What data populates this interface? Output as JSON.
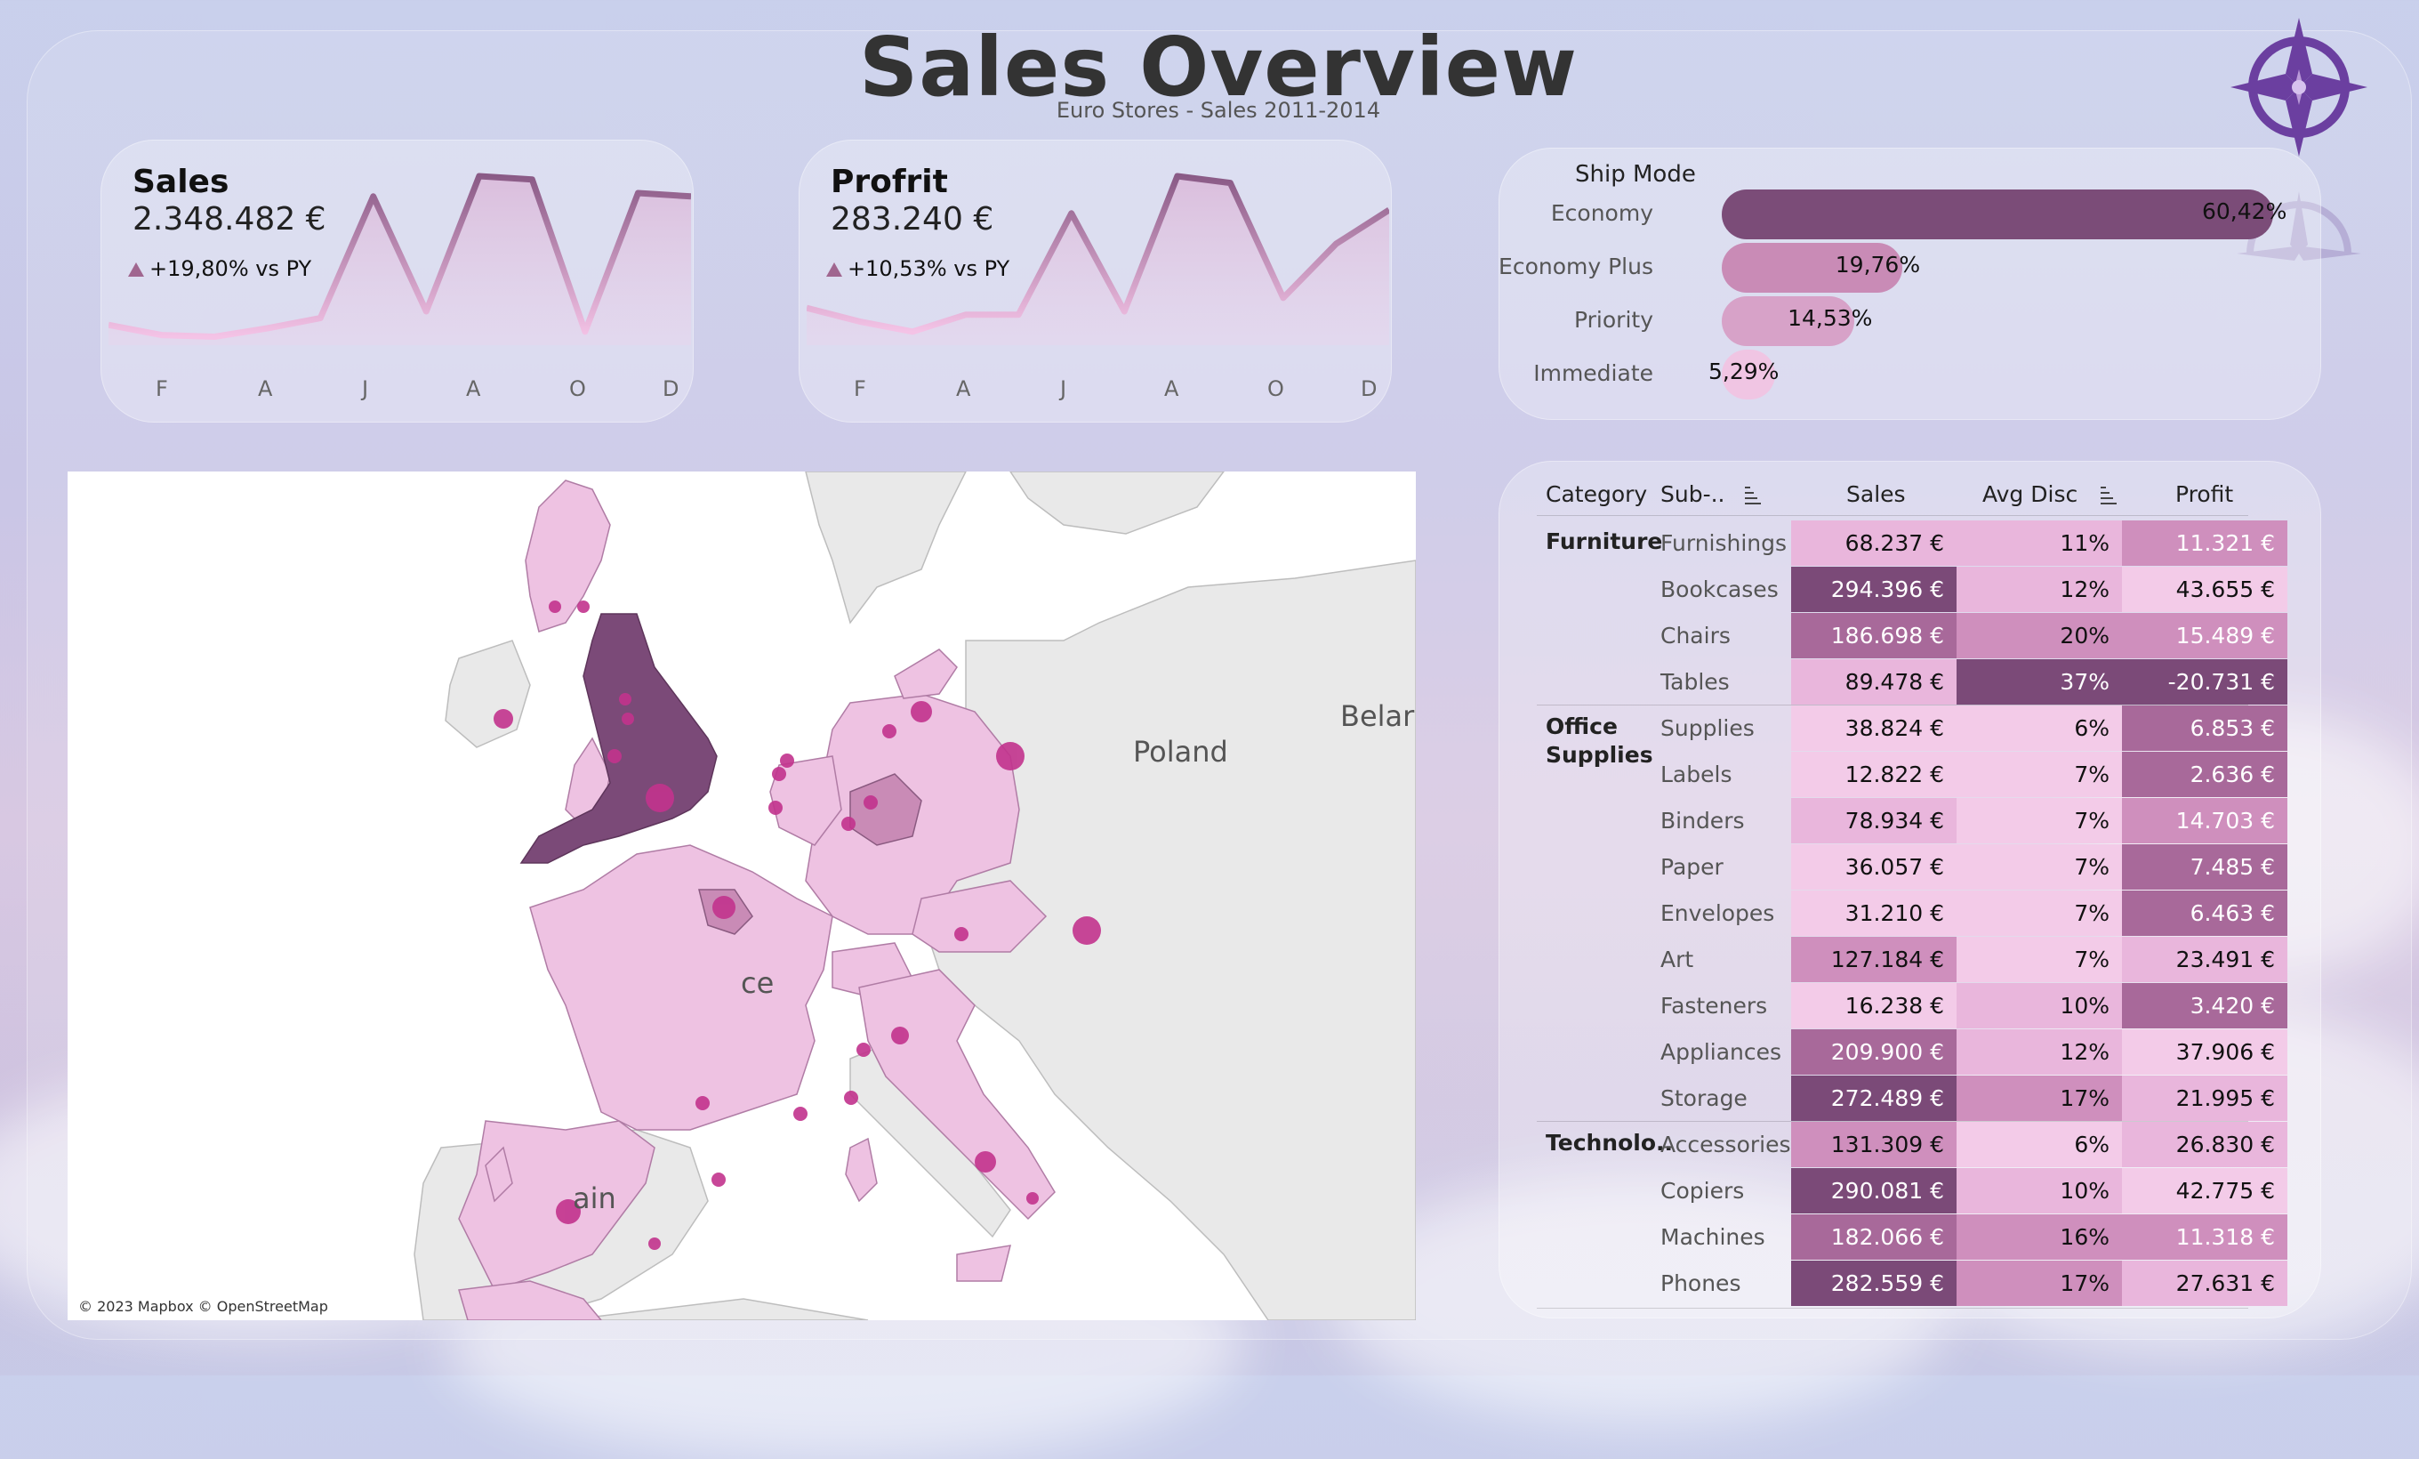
{
  "title": "Sales Overview",
  "subtitle": "Euro Stores - Sales 2011-2014",
  "logo_icon": "compass-star-icon",
  "kpis": {
    "sales": {
      "label": "Sales",
      "value": "2.348.482 €",
      "delta": "+19,80% vs PY",
      "months": [
        "F",
        "A",
        "J",
        "A",
        "O",
        "D"
      ],
      "trend": [
        12,
        6,
        5,
        10,
        16,
        88,
        20,
        100,
        98,
        8,
        90,
        88
      ]
    },
    "profit": {
      "label": "Profrit",
      "value": "283.240 €",
      "delta": "+10,53% vs PY",
      "months": [
        "F",
        "A",
        "J",
        "A",
        "O",
        "D"
      ],
      "trend": [
        22,
        14,
        8,
        18,
        18,
        78,
        20,
        100,
        96,
        28,
        60,
        80
      ]
    }
  },
  "ship_mode": {
    "title": "Ship Mode",
    "rows": [
      {
        "label": "Economy",
        "value": "60,42%",
        "pct": 60.42,
        "color": "#7b4c78"
      },
      {
        "label": "Economy Plus",
        "value": "19,76%",
        "pct": 19.76,
        "color": "#c98bb6"
      },
      {
        "label": "Priority",
        "value": "14,53%",
        "pct": 14.53,
        "color": "#d7a2c8"
      },
      {
        "label": "Immediate",
        "value": "5,29%",
        "pct": 5.29,
        "color": "#f0c5e3"
      }
    ]
  },
  "map": {
    "credit": "© 2023 Mapbox © OpenStreetMap",
    "labels": {
      "poland": "Poland",
      "belarus": "Belaru",
      "france": "ce",
      "spain": "ain"
    }
  },
  "table": {
    "headers": {
      "category": "Category",
      "sub": "Sub-..",
      "sales": "Sales",
      "avg_disc": "Avg Disc",
      "profit": "Profit"
    },
    "groups": [
      {
        "category": "Furniture",
        "rows": [
          {
            "sub": "Furnishings",
            "sales": "68.237 €",
            "disc": "11%",
            "profit": "11.321 €",
            "sc": 2,
            "dc": 2,
            "pc": 3
          },
          {
            "sub": "Bookcases",
            "sales": "294.396 €",
            "disc": "12%",
            "profit": "43.655 €",
            "sc": 5,
            "dc": 2,
            "pc": 1
          },
          {
            "sub": "Chairs",
            "sales": "186.698 €",
            "disc": "20%",
            "profit": "15.489 €",
            "sc": 4,
            "dc": 3,
            "pc": 3
          },
          {
            "sub": "Tables",
            "sales": "89.478 €",
            "disc": "37%",
            "profit": "-20.731 €",
            "sc": 2,
            "dc": 5,
            "pc": 5
          }
        ]
      },
      {
        "category": "Office Supplies",
        "rows": [
          {
            "sub": "Supplies",
            "sales": "38.824 €",
            "disc": "6%",
            "profit": "6.853 €",
            "sc": 1,
            "dc": 1,
            "pc": 4
          },
          {
            "sub": "Labels",
            "sales": "12.822 €",
            "disc": "7%",
            "profit": "2.636 €",
            "sc": 1,
            "dc": 1,
            "pc": 4
          },
          {
            "sub": "Binders",
            "sales": "78.934 €",
            "disc": "7%",
            "profit": "14.703 €",
            "sc": 2,
            "dc": 1,
            "pc": 3
          },
          {
            "sub": "Paper",
            "sales": "36.057 €",
            "disc": "7%",
            "profit": "7.485 €",
            "sc": 1,
            "dc": 1,
            "pc": 4
          },
          {
            "sub": "Envelopes",
            "sales": "31.210 €",
            "disc": "7%",
            "profit": "6.463 €",
            "sc": 1,
            "dc": 1,
            "pc": 4
          },
          {
            "sub": "Art",
            "sales": "127.184 €",
            "disc": "7%",
            "profit": "23.491 €",
            "sc": 3,
            "dc": 1,
            "pc": 2
          },
          {
            "sub": "Fasteners",
            "sales": "16.238 €",
            "disc": "10%",
            "profit": "3.420 €",
            "sc": 1,
            "dc": 2,
            "pc": 4
          },
          {
            "sub": "Appliances",
            "sales": "209.900 €",
            "disc": "12%",
            "profit": "37.906 €",
            "sc": 4,
            "dc": 2,
            "pc": 1
          },
          {
            "sub": "Storage",
            "sales": "272.489 €",
            "disc": "17%",
            "profit": "21.995 €",
            "sc": 5,
            "dc": 3,
            "pc": 2
          }
        ]
      },
      {
        "category": "Technolo..",
        "rows": [
          {
            "sub": "Accessories",
            "sales": "131.309 €",
            "disc": "6%",
            "profit": "26.830 €",
            "sc": 3,
            "dc": 1,
            "pc": 2
          },
          {
            "sub": "Copiers",
            "sales": "290.081 €",
            "disc": "10%",
            "profit": "42.775 €",
            "sc": 5,
            "dc": 2,
            "pc": 1
          },
          {
            "sub": "Machines",
            "sales": "182.066 €",
            "disc": "16%",
            "profit": "11.318 €",
            "sc": 4,
            "dc": 3,
            "pc": 3
          },
          {
            "sub": "Phones",
            "sales": "282.559 €",
            "disc": "17%",
            "profit": "27.631 €",
            "sc": 5,
            "dc": 3,
            "pc": 2
          }
        ]
      }
    ],
    "palette": [
      "#f3cbe8",
      "#e9b6dc",
      "#cf8fbd",
      "#a8699a",
      "#7b4a78"
    ]
  }
}
